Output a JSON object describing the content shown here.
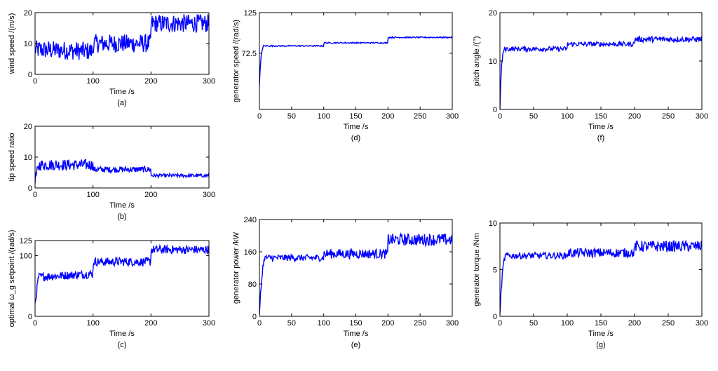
{
  "chart_data": [
    {
      "panel": "a",
      "type": "line",
      "caption": "(a)",
      "xlabel": "Time /s",
      "ylabel": "wind speed /(m/s)",
      "xlim": [
        0,
        300
      ],
      "ylim": [
        0,
        20
      ],
      "xticks": [
        0,
        100,
        200,
        300
      ],
      "yticks": [
        0,
        10,
        20
      ],
      "color": "#0000ff",
      "segments": [
        [
          0,
          3,
          8
        ],
        [
          100,
          3,
          10
        ],
        [
          200,
          3,
          16.5
        ]
      ],
      "series": [
        {
          "x": [
            0,
            2,
            99.9,
            100,
            105,
            199.9,
            200,
            205,
            298,
            300
          ],
          "y": [
            8,
            8,
            7.5,
            9,
            10,
            10,
            15,
            16.5,
            16.5,
            12
          ]
        }
      ]
    },
    {
      "panel": "b",
      "type": "line",
      "caption": "(b)",
      "xlabel": "Time /s",
      "ylabel": "tip speed ratio",
      "xlim": [
        0,
        300
      ],
      "ylim": [
        0,
        20
      ],
      "xticks": [
        0,
        100,
        200,
        300
      ],
      "yticks": [
        0,
        10,
        20
      ],
      "color": "#0000ff",
      "segments": [
        [
          0,
          1.8,
          8
        ],
        [
          100,
          1,
          6
        ],
        [
          200,
          0.6,
          4
        ]
      ],
      "series": [
        {
          "x": [
            0,
            8,
            99.9,
            100,
            199.9,
            200,
            300
          ],
          "y": [
            3,
            7.5,
            7.5,
            6,
            6,
            4,
            4
          ]
        }
      ]
    },
    {
      "panel": "c",
      "type": "line",
      "caption": "(c)",
      "xlabel": "Time /s",
      "ylabel": "optimal ω_g setpoint /(rad/s)",
      "xlim": [
        0,
        300
      ],
      "ylim": [
        0,
        125
      ],
      "xticks": [
        0,
        100,
        200,
        300
      ],
      "yticks": [
        0,
        100,
        125
      ],
      "color": "#0000ff",
      "segments": [
        [
          0,
          7,
          70
        ],
        [
          100,
          7,
          90
        ],
        [
          200,
          7,
          110
        ]
      ],
      "series": [
        {
          "x": [
            0,
            6,
            99.9,
            100,
            199.9,
            200,
            300
          ],
          "y": [
            20,
            65,
            70,
            85,
            95,
            110,
            110
          ]
        }
      ]
    },
    {
      "panel": "d",
      "type": "line",
      "caption": "(d)",
      "xlabel": "Time /s",
      "ylabel": "generator speed /(rad/s)",
      "xlim": [
        0,
        300
      ],
      "ylim": [
        0,
        125
      ],
      "xticks": [
        0,
        50,
        100,
        150,
        200,
        250,
        300
      ],
      "yticks": [
        72.5,
        125
      ],
      "color": "#0000ff",
      "segments": [
        [
          0,
          0.8,
          82
        ],
        [
          100,
          0.8,
          86
        ],
        [
          200,
          0.8,
          93
        ]
      ],
      "series": [
        {
          "x": [
            0,
            1,
            3,
            6,
            100,
            199.9,
            205,
            300
          ],
          "y": [
            30,
            50,
            72,
            82,
            86,
            86,
            93,
            93
          ]
        }
      ]
    },
    {
      "panel": "e",
      "type": "line",
      "caption": "(e)",
      "xlabel": "Time /s",
      "ylabel": "generator power /kW",
      "xlim": [
        0,
        300
      ],
      "ylim": [
        0,
        240
      ],
      "xticks": [
        0,
        50,
        100,
        150,
        200,
        250,
        300
      ],
      "yticks": [
        0,
        80,
        160,
        240
      ],
      "color": "#0000ff",
      "segments": [
        [
          0,
          8,
          145
        ],
        [
          100,
          12,
          155
        ],
        [
          200,
          15,
          190
        ]
      ],
      "series": [
        {
          "x": [
            0,
            2,
            5,
            8,
            100,
            199.9,
            205,
            300
          ],
          "y": [
            0,
            60,
            120,
            145,
            150,
            160,
            190,
            190
          ]
        }
      ]
    },
    {
      "panel": "f",
      "type": "line",
      "caption": "(f)",
      "xlabel": "Time /s",
      "ylabel": "pitch angle /(°)",
      "xlim": [
        0,
        300
      ],
      "ylim": [
        0,
        20
      ],
      "xticks": [
        0,
        50,
        100,
        150,
        200,
        250,
        300
      ],
      "yticks": [
        0,
        10,
        20
      ],
      "color": "#0000ff",
      "segments": [
        [
          0,
          0.5,
          12.5
        ],
        [
          100,
          0.5,
          13.5
        ],
        [
          200,
          0.6,
          14.5
        ]
      ],
      "series": [
        {
          "x": [
            0,
            1,
            3,
            6,
            100,
            199.9,
            205,
            300
          ],
          "y": [
            0,
            5,
            10,
            12.5,
            13.5,
            13.5,
            14.5,
            14.5
          ]
        }
      ]
    },
    {
      "panel": "g",
      "type": "line",
      "caption": "(g)",
      "xlabel": "Time /s",
      "ylabel": "generator torque /Nm",
      "xlim": [
        0,
        300
      ],
      "ylim": [
        0,
        10
      ],
      "xticks": [
        0,
        50,
        100,
        150,
        200,
        250,
        300
      ],
      "yticks": [
        0,
        5,
        10
      ],
      "color": "#0000ff",
      "segments": [
        [
          0,
          0.35,
          6.5
        ],
        [
          100,
          0.5,
          6.8
        ],
        [
          200,
          0.6,
          7.5
        ]
      ],
      "series": [
        {
          "x": [
            0,
            2,
            5,
            8,
            100,
            199.9,
            205,
            300
          ],
          "y": [
            0,
            3,
            5.5,
            6.5,
            6.8,
            6.8,
            7.5,
            7.5
          ]
        }
      ]
    }
  ]
}
